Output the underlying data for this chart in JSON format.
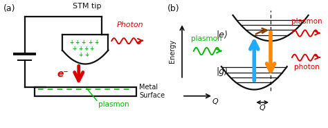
{
  "bg_color": "#ffffff",
  "panel_a": {
    "label": "(a)",
    "stm_tip_label": "STM tip",
    "metal_surface_label": "Metal\nSurface",
    "electron_label": "e⁻",
    "plasmon_label": "plasmon",
    "photon_label": "Photon",
    "plus_color": "#00bb00",
    "electron_color": "#dd0000",
    "plasmon_color": "#00bb00",
    "photon_color": "#dd0000",
    "line_color": "#111111",
    "dash_color": "#00bb00"
  },
  "panel_b": {
    "label": "(b)",
    "state_e_label": "|e⟩",
    "state_g_label": "|g⟩",
    "energy_label": "Energy",
    "q_label": "Q",
    "q2_label": "Q",
    "plasmon_in_label": "plasmon",
    "plasmon_out_label": "plasmon",
    "photon_out_label": "photon",
    "blue_arrow_color": "#22aaff",
    "orange_arrow_color": "#ff8800",
    "brown_arrow_color": "#8B4000",
    "green_color": "#00bb00",
    "red_color": "#dd0000",
    "line_color": "#111111"
  }
}
